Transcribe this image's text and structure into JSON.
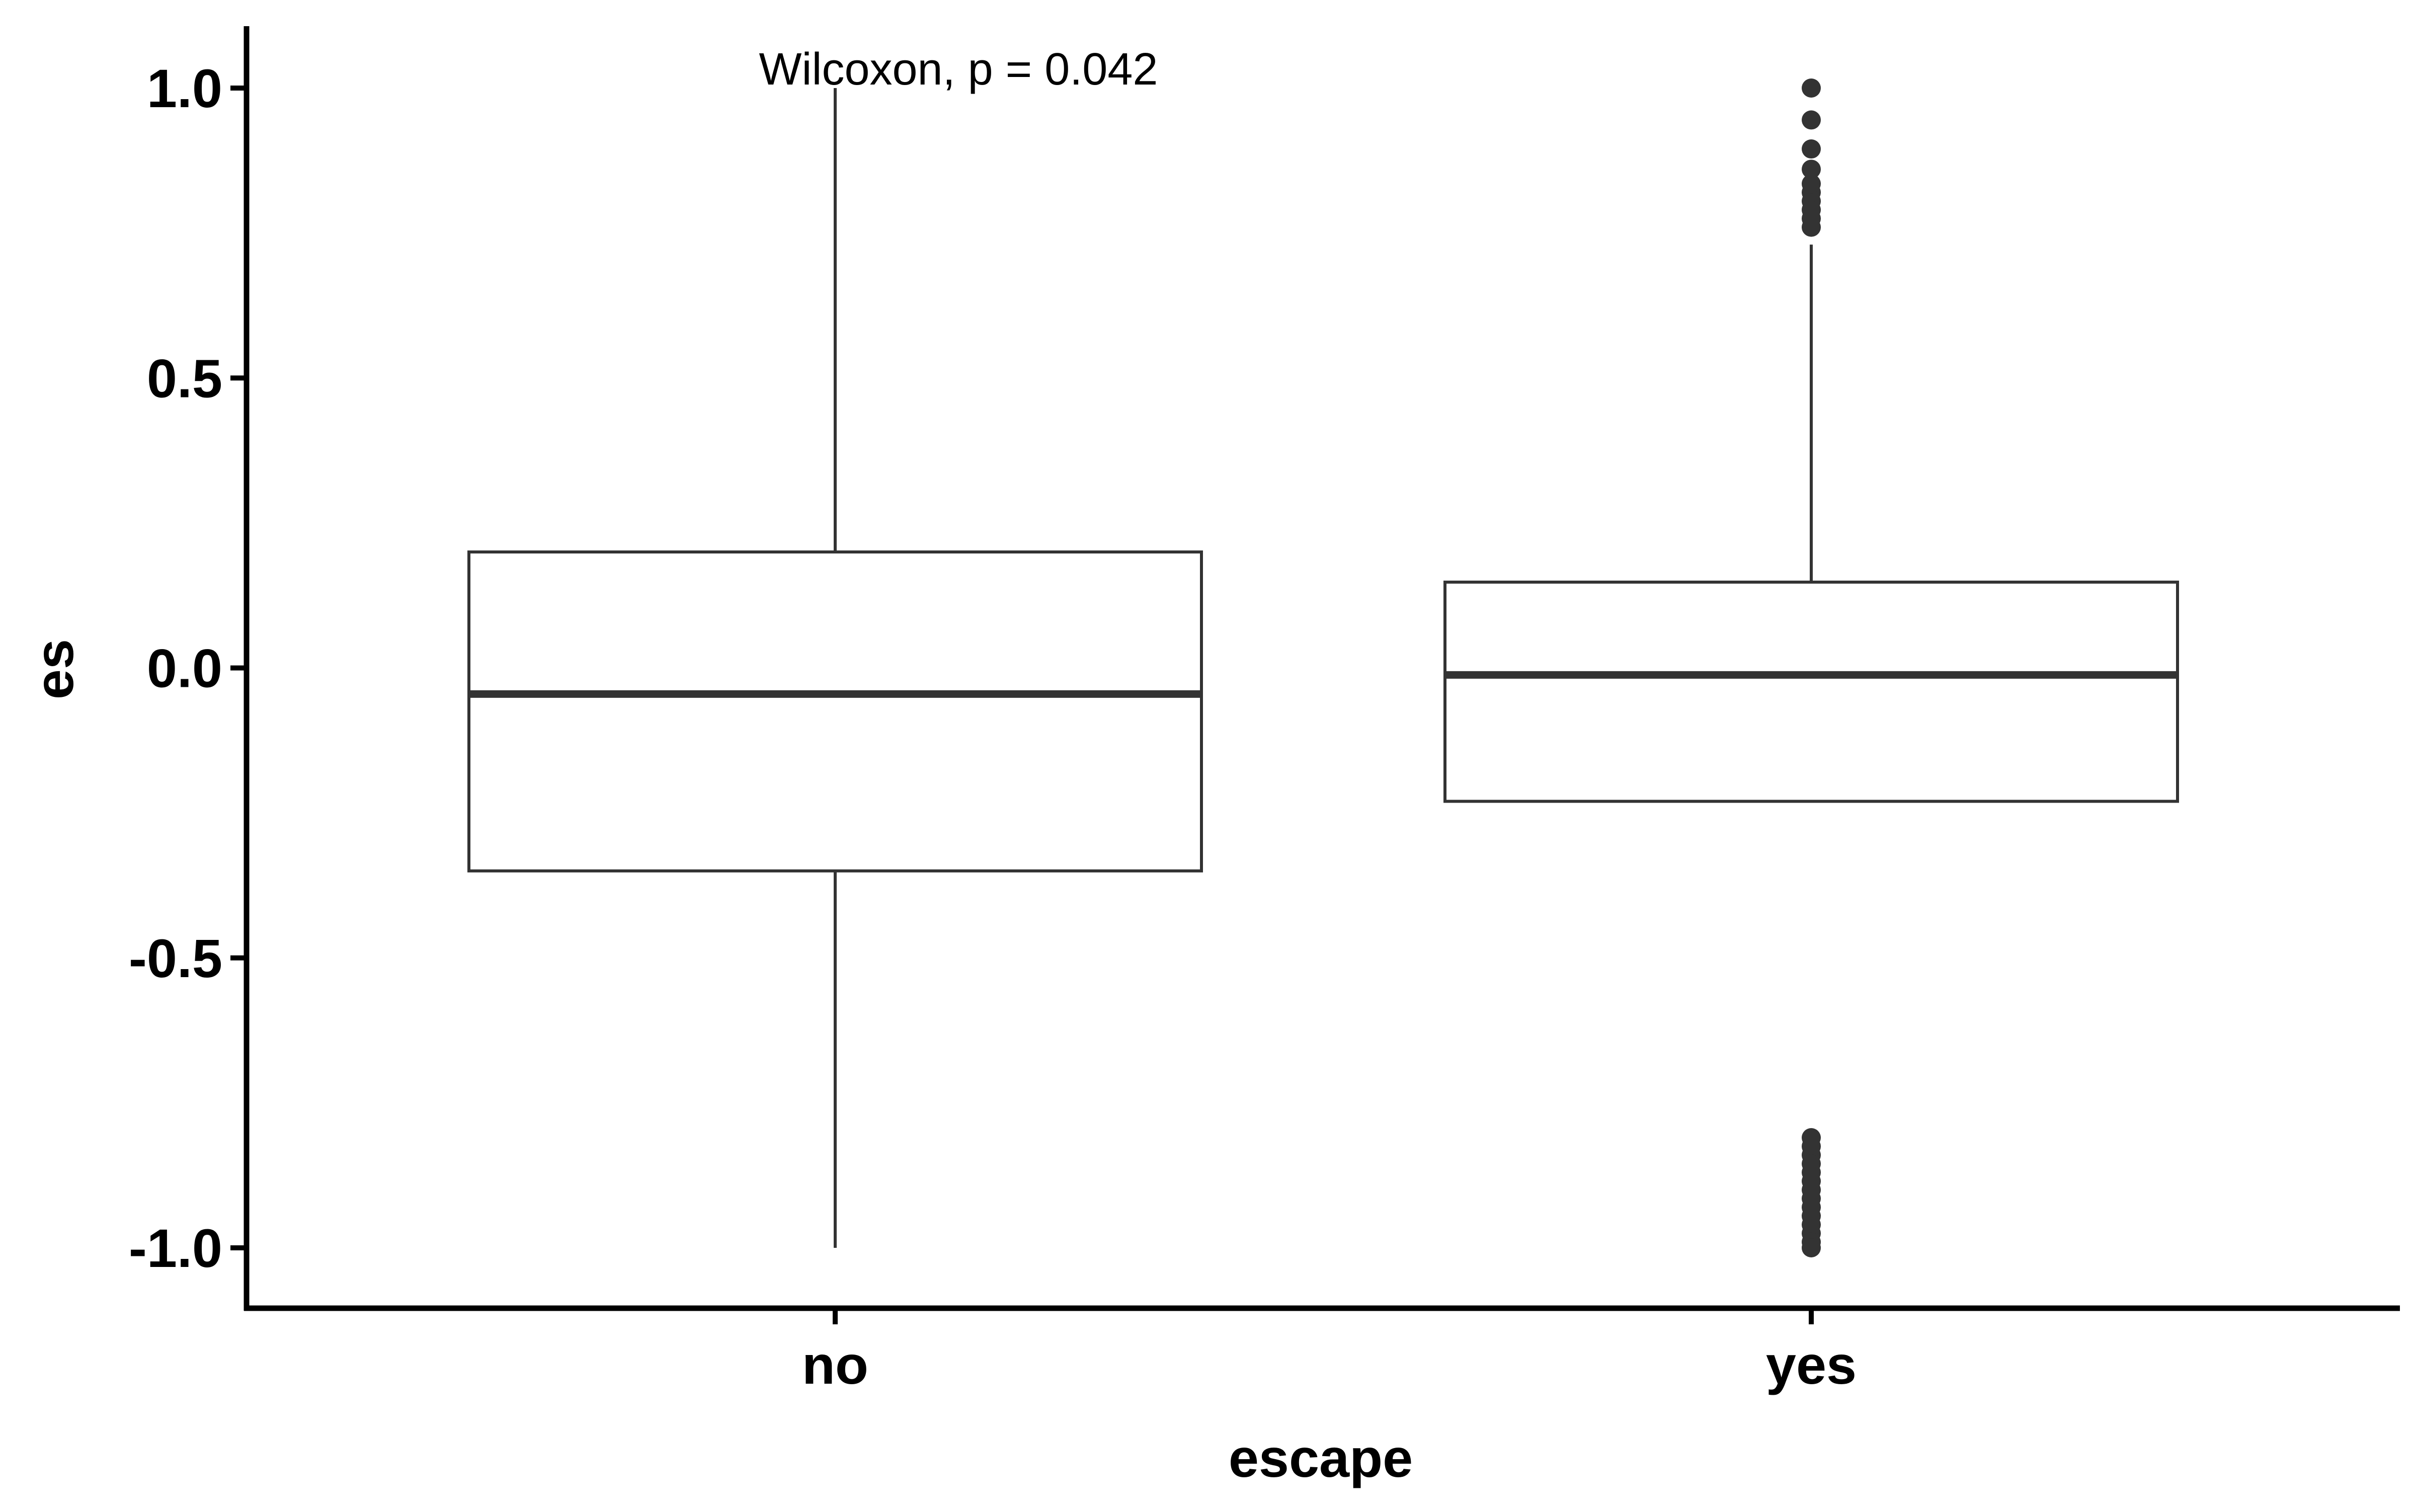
{
  "chart_data": {
    "type": "box",
    "xlabel": "escape",
    "ylabel": "es",
    "ylim": [
      -1.1,
      1.1
    ],
    "yticks": [
      -1.0,
      -0.5,
      0.0,
      0.5,
      1.0
    ],
    "ytick_labels": [
      "-1.0",
      "-0.5",
      "0.0",
      "0.5",
      "1.0"
    ],
    "categories": [
      "no",
      "yes"
    ],
    "grid": false,
    "legend": "none",
    "annotation": "Wilcoxon, p = 0.042",
    "boxes": [
      {
        "category": "no",
        "whisker_low": -1.0,
        "q1": -0.35,
        "median": -0.045,
        "q3": 0.2,
        "whisker_high": 1.0,
        "outliers": []
      },
      {
        "category": "yes",
        "whisker_low": -0.23,
        "q1": -0.23,
        "median": -0.012,
        "q3": 0.148,
        "whisker_high": 0.73,
        "outliers": [
          0.76,
          0.775,
          0.79,
          0.805,
          0.82,
          0.835,
          0.86,
          0.895,
          0.945,
          1.0,
          -0.81,
          -0.825,
          -0.84,
          -0.855,
          -0.87,
          -0.885,
          -0.9,
          -0.915,
          -0.93,
          -0.945,
          -0.96,
          -0.975,
          -0.99,
          -1.0
        ]
      }
    ],
    "colors": {
      "box_stroke": "#333333",
      "box_fill": "#ffffff",
      "axis": "#000000",
      "point": "#333333"
    }
  }
}
